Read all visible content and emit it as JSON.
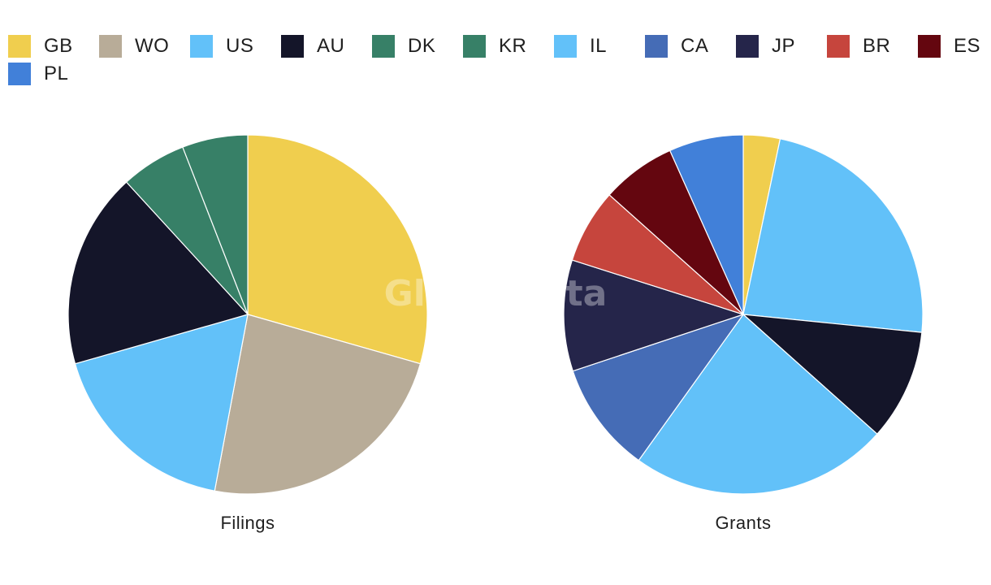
{
  "legend": [
    {
      "label": "GB",
      "color": "#F0CE4E"
    },
    {
      "label": "WO",
      "color": "#B8AC98"
    },
    {
      "label": "US",
      "color": "#62C1F9"
    },
    {
      "label": "AU",
      "color": "#141529"
    },
    {
      "label": "DK",
      "color": "#378067"
    },
    {
      "label": "KR",
      "color": "#378067"
    },
    {
      "label": "IL",
      "color": "#62C1F9"
    },
    {
      "label": "CA",
      "color": "#456CB6"
    },
    {
      "label": "JP",
      "color": "#25254A"
    },
    {
      "label": "BR",
      "color": "#C6453D"
    },
    {
      "label": "ES",
      "color": "#64060F"
    },
    {
      "label": "PL",
      "color": "#4180D9"
    }
  ],
  "watermark": "GlobalData",
  "chart_data": [
    {
      "type": "pie",
      "title": "Filings",
      "start_angle_deg": 0,
      "direction": "clockwise",
      "slices": [
        {
          "label": "GB",
          "value": 29.4,
          "color": "#F0CE4E"
        },
        {
          "label": "WO",
          "value": 23.5,
          "color": "#B8AC98"
        },
        {
          "label": "US",
          "value": 17.6,
          "color": "#62C1F9"
        },
        {
          "label": "AU",
          "value": 17.6,
          "color": "#141529"
        },
        {
          "label": "DK",
          "value": 5.9,
          "color": "#378067"
        },
        {
          "label": "KR",
          "value": 5.9,
          "color": "#378067"
        }
      ]
    },
    {
      "type": "pie",
      "title": "Grants",
      "start_angle_deg": 0,
      "direction": "clockwise",
      "slices": [
        {
          "label": "GB",
          "value": 3.2,
          "color": "#F0CE4E"
        },
        {
          "label": "US",
          "value": 22.6,
          "color": "#62C1F9"
        },
        {
          "label": "AU",
          "value": 9.7,
          "color": "#141529"
        },
        {
          "label": "IL",
          "value": 22.6,
          "color": "#62C1F9"
        },
        {
          "label": "CA",
          "value": 9.7,
          "color": "#456CB6"
        },
        {
          "label": "JP",
          "value": 9.7,
          "color": "#25254A"
        },
        {
          "label": "BR",
          "value": 6.5,
          "color": "#C6453D"
        },
        {
          "label": "ES",
          "value": 6.5,
          "color": "#64060F"
        },
        {
          "label": "PL",
          "value": 6.5,
          "color": "#4180D9"
        }
      ]
    }
  ]
}
